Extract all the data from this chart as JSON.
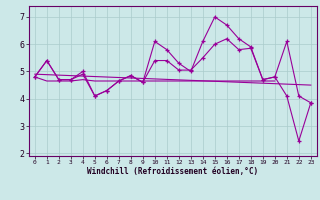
{
  "xlabel": "Windchill (Refroidissement éolien,°C)",
  "x": [
    0,
    1,
    2,
    3,
    4,
    5,
    6,
    7,
    8,
    9,
    10,
    11,
    12,
    13,
    14,
    15,
    16,
    17,
    18,
    19,
    20,
    21,
    22,
    23
  ],
  "line_jagged": [
    4.8,
    5.4,
    4.7,
    4.7,
    4.9,
    4.1,
    4.3,
    4.65,
    4.85,
    4.6,
    6.1,
    5.8,
    5.3,
    5.0,
    6.1,
    7.0,
    6.7,
    6.2,
    5.9,
    4.7,
    4.8,
    6.1,
    4.1,
    3.85
  ],
  "line_smooth": [
    4.8,
    5.4,
    4.7,
    4.7,
    5.0,
    4.1,
    4.3,
    4.65,
    4.85,
    4.6,
    5.4,
    5.4,
    5.05,
    5.05,
    5.5,
    6.0,
    6.2,
    5.8,
    5.85,
    4.7,
    4.8,
    4.1,
    2.45,
    3.85
  ],
  "line_flat_x": [
    0,
    1,
    2,
    3,
    4,
    5,
    6,
    7,
    8,
    9,
    10,
    11,
    12,
    13,
    14,
    15,
    16,
    17,
    18,
    19,
    20
  ],
  "line_flat_y": [
    4.8,
    4.65,
    4.65,
    4.65,
    4.7,
    4.65,
    4.65,
    4.65,
    4.65,
    4.65,
    4.65,
    4.65,
    4.65,
    4.65,
    4.65,
    4.65,
    4.65,
    4.65,
    4.65,
    4.65,
    4.65
  ],
  "line_trend_x": [
    0,
    23
  ],
  "line_trend_y": [
    4.9,
    4.5
  ],
  "color": "#990099",
  "bg_color": "#cce8e8",
  "grid_color": "#aacccc",
  "ylim": [
    1.9,
    7.4
  ],
  "xlim": [
    -0.5,
    23.5
  ],
  "yticks": [
    2,
    3,
    4,
    5,
    6,
    7
  ],
  "xticks": [
    0,
    1,
    2,
    3,
    4,
    5,
    6,
    7,
    8,
    9,
    10,
    11,
    12,
    13,
    14,
    15,
    16,
    17,
    18,
    19,
    20,
    21,
    22,
    23
  ],
  "ytick_fontsize": 6,
  "xtick_fontsize": 4.5,
  "xlabel_fontsize": 5.5
}
